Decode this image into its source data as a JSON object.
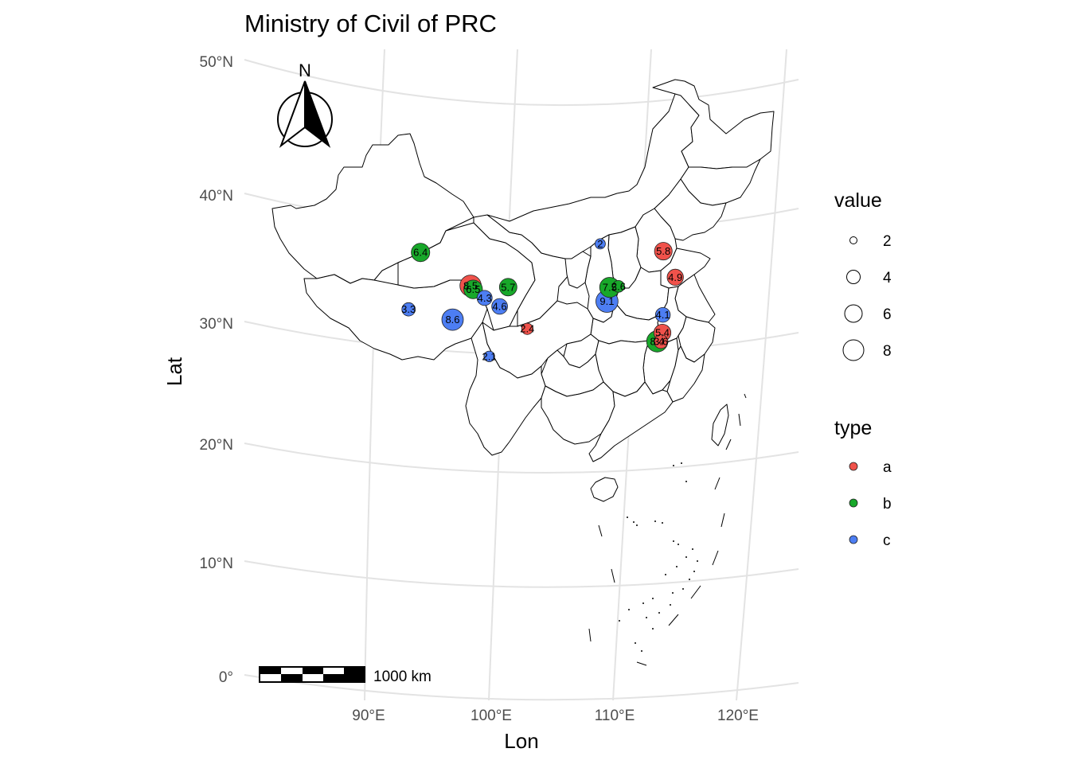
{
  "title": "Ministry of Civil of PRC",
  "axes": {
    "xlabel": "Lon",
    "ylabel": "Lat",
    "x_ticks": [
      "90°E",
      "100°E",
      "110°E",
      "120°E"
    ],
    "y_ticks": [
      "50°N",
      "40°N",
      "30°N",
      "20°N",
      "10°N",
      "0°"
    ]
  },
  "north_arrow": {
    "label": "N"
  },
  "scale_bar": {
    "label": "1000 km"
  },
  "colors": {
    "a": "#f0524b",
    "b": "#18a82a",
    "c": "#4d7ef3"
  },
  "legend": {
    "value": {
      "title": "value",
      "labels": [
        "2",
        "4",
        "6",
        "8"
      ]
    },
    "type": {
      "title": "type",
      "labels": [
        "a",
        "b",
        "c"
      ]
    }
  },
  "chart_data": {
    "type": "scatter",
    "map": "China provinces (Lambert projection)",
    "title": "Ministry of Civil of PRC",
    "xlabel": "Lon",
    "ylabel": "Lat",
    "points": [
      {
        "lon": 94.5,
        "lat": 35.8,
        "value": 6.4,
        "type": "b"
      },
      {
        "lon": 98.4,
        "lat": 33.0,
        "value": 8.5,
        "type": "a"
      },
      {
        "lon": 98.6,
        "lat": 32.7,
        "value": 6.5,
        "type": "b"
      },
      {
        "lon": 101.4,
        "lat": 32.8,
        "value": 5.7,
        "type": "b"
      },
      {
        "lon": 99.5,
        "lat": 32.0,
        "value": 4.3,
        "type": "c"
      },
      {
        "lon": 100.7,
        "lat": 31.3,
        "value": 4.6,
        "type": "c"
      },
      {
        "lon": 93.4,
        "lat": 31.4,
        "value": 3.3,
        "type": "c"
      },
      {
        "lon": 96.9,
        "lat": 30.4,
        "value": 8.6,
        "type": "c"
      },
      {
        "lon": 102.9,
        "lat": 29.5,
        "value": 2.4,
        "type": "a"
      },
      {
        "lon": 99.8,
        "lat": 27.4,
        "value": 2.1,
        "type": "c"
      },
      {
        "lon": 108.7,
        "lat": 36.2,
        "value": 2.0,
        "type": "c"
      },
      {
        "lon": 113.7,
        "lat": 35.8,
        "value": 5.8,
        "type": "a"
      },
      {
        "lon": 114.7,
        "lat": 33.8,
        "value": 4.9,
        "type": "a"
      },
      {
        "lon": 109.5,
        "lat": 32.8,
        "value": 7.5,
        "type": "b"
      },
      {
        "lon": 110.2,
        "lat": 32.9,
        "value": 2.6,
        "type": "b"
      },
      {
        "lon": 109.3,
        "lat": 31.7,
        "value": 9.1,
        "type": "c"
      },
      {
        "lon": 113.8,
        "lat": 30.8,
        "value": 4.1,
        "type": "c"
      },
      {
        "lon": 113.8,
        "lat": 29.4,
        "value": 5.4,
        "type": "a"
      },
      {
        "lon": 113.4,
        "lat": 28.7,
        "value": 8.4,
        "type": "b"
      },
      {
        "lon": 113.7,
        "lat": 28.7,
        "value": 3.6,
        "type": "a"
      }
    ]
  }
}
